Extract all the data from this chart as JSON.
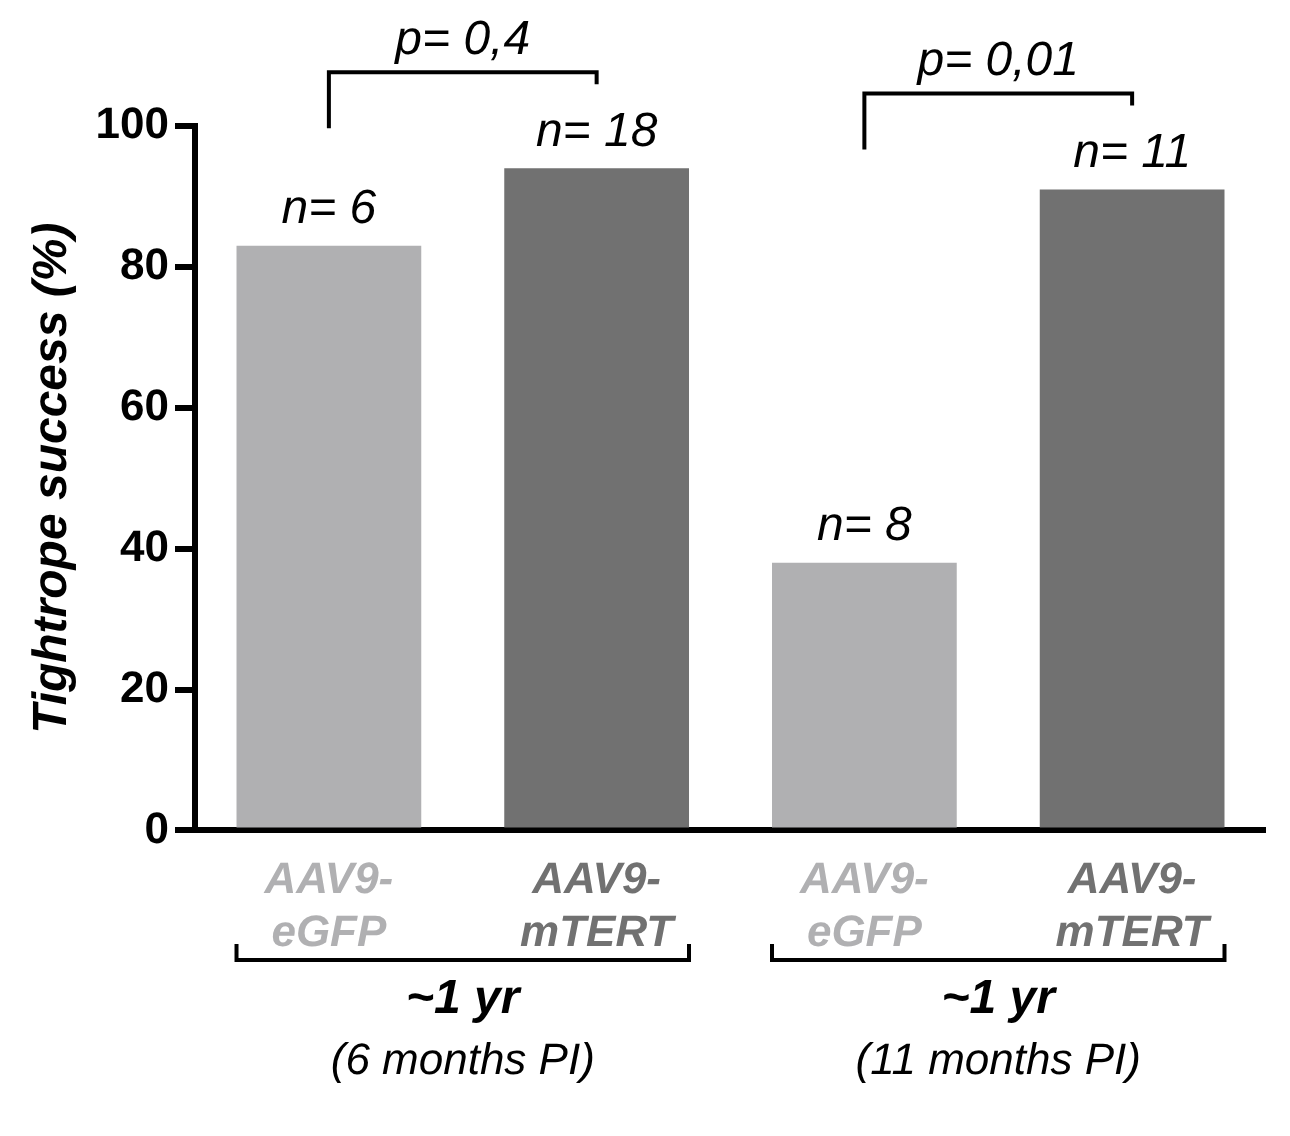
{
  "chart_data": {
    "type": "bar",
    "ylabel": "Tightrope success (%)",
    "categories": [
      "AAV9-eGFP",
      "AAV9-mTERT",
      "AAV9-eGFP",
      "AAV9-mTERT"
    ],
    "values": [
      83,
      94,
      38,
      91
    ],
    "colors": [
      "#b0b0b2",
      "#717171",
      "#b0b0b2",
      "#717171"
    ],
    "ylim": [
      0,
      100
    ],
    "yticks": [
      0,
      20,
      40,
      60,
      80,
      100
    ],
    "grid": false,
    "legend": false,
    "annotations": [
      "n= 6",
      "n= 18",
      "n= 8",
      "n= 11",
      "p= 0,4",
      "p= 0,01",
      "~1 yr",
      "(6 months PI)",
      "~1 yr",
      "(11 months PI)"
    ]
  }
}
